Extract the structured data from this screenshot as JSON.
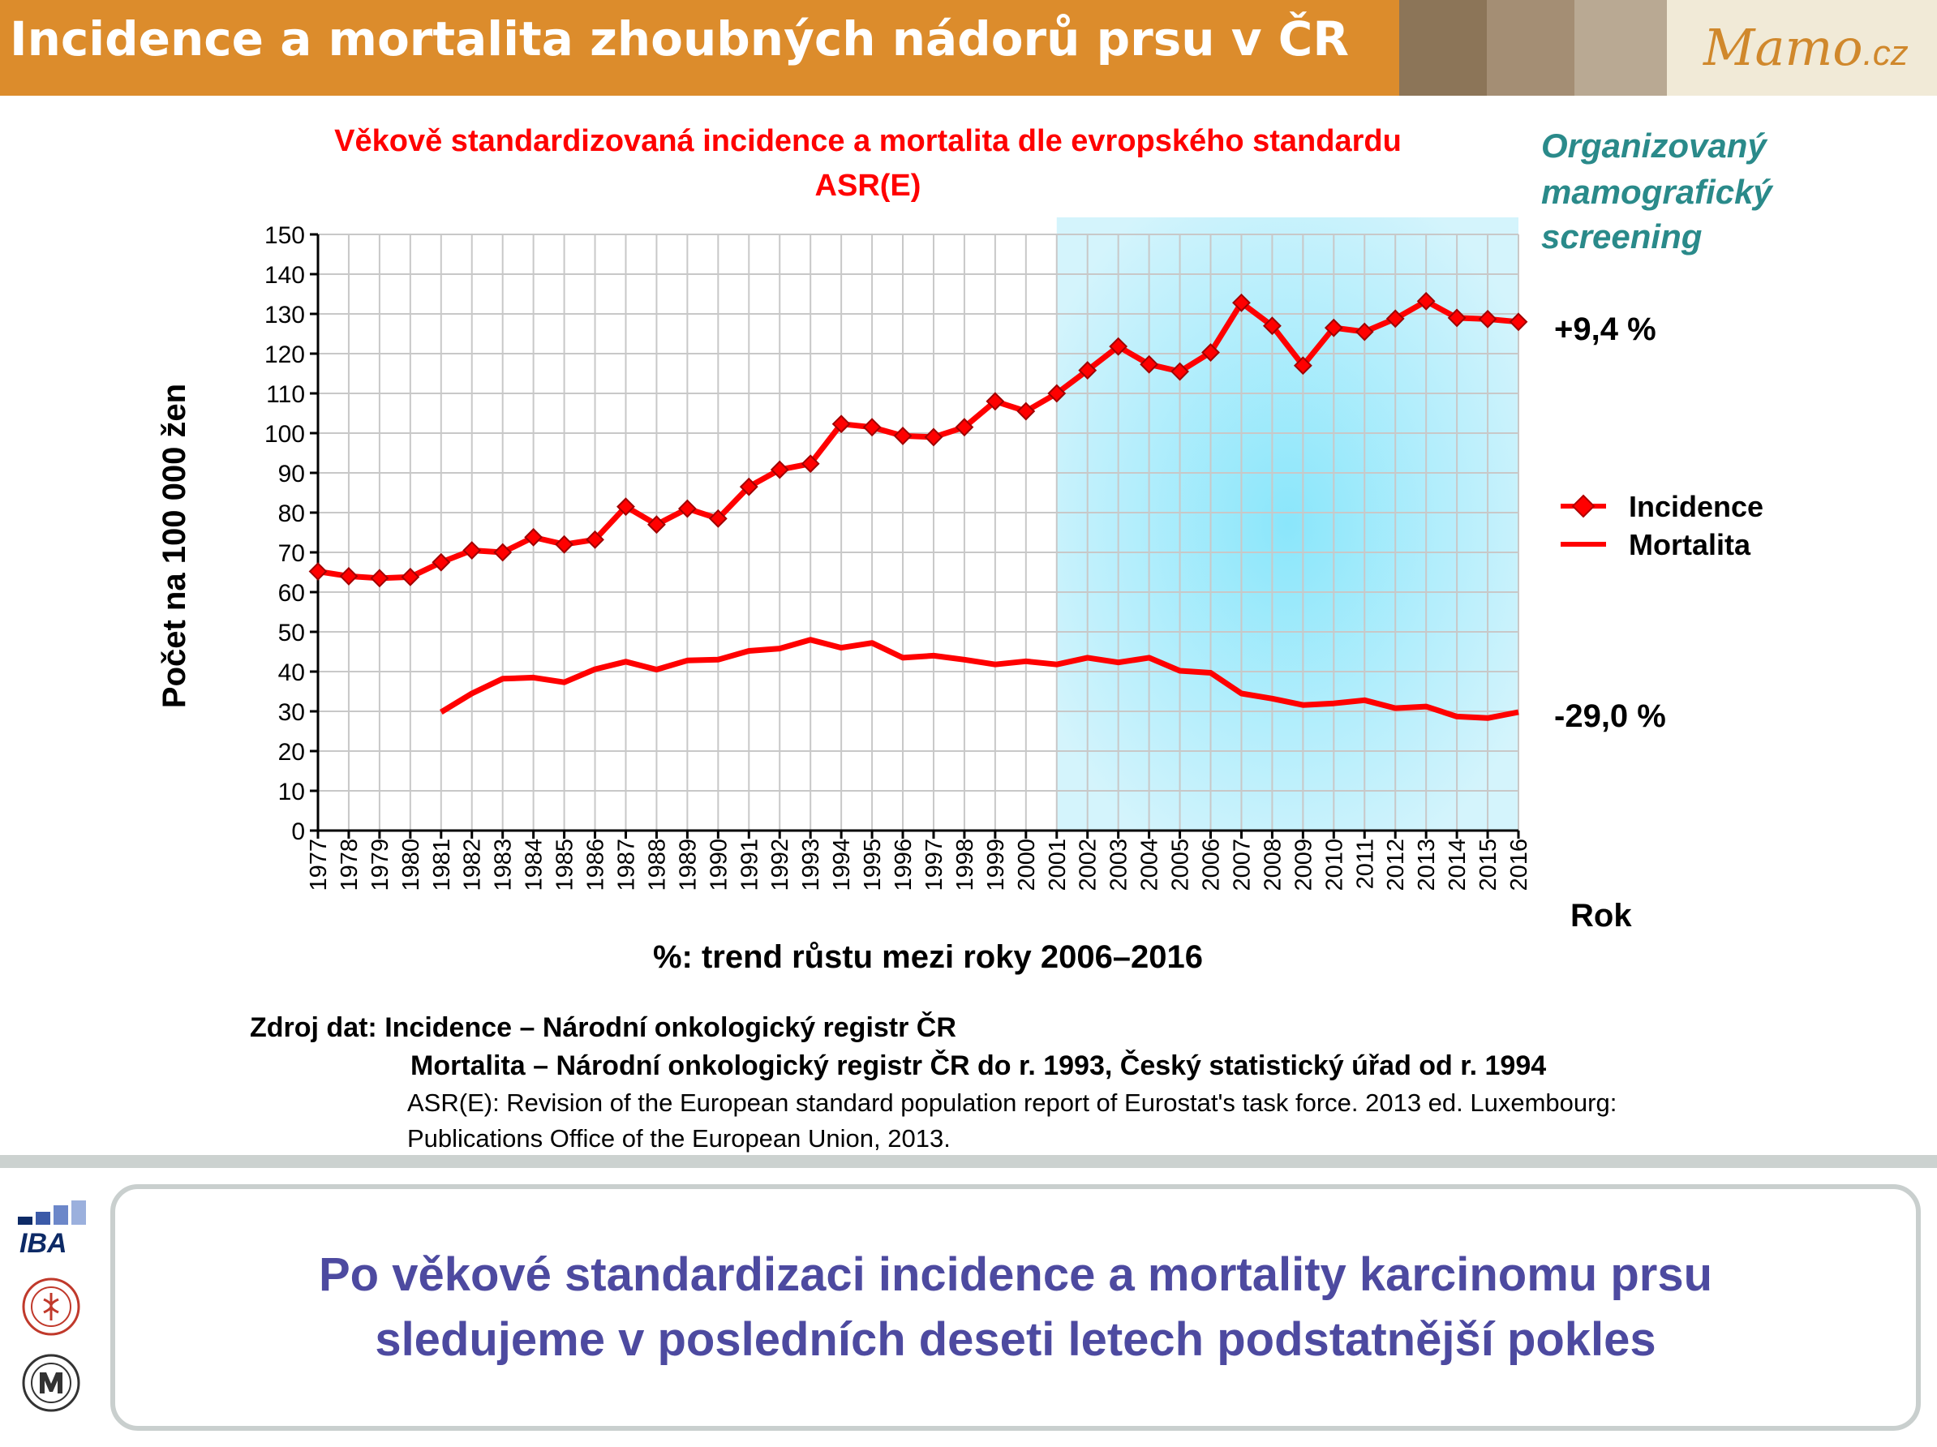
{
  "header": {
    "title": "Incidence a mortalita zhoubných nádorů prsu v ČR",
    "logo_main": "Mamo",
    "logo_suffix": ".cz"
  },
  "colors": {
    "header_orange": "#dc8c2c",
    "series_red": "#ff0000",
    "screening_teal": "#2a8a8a",
    "conclusion_blue": "#4d4aa0",
    "screening_band": "#c9f0fb"
  },
  "chart_data": {
    "type": "line",
    "title": "Věkově standardizovaná incidence a mortalita dle evropského standardu ASR(E)",
    "title_lines": [
      "Věkově standardizovaná incidence a mortalita dle evropského standardu",
      "ASR(E)"
    ],
    "ylabel": "Počet  na 100 000 žen",
    "xlabel": "Rok",
    "ylim": [
      0,
      150
    ],
    "yticks": [
      0,
      10,
      20,
      30,
      40,
      50,
      60,
      70,
      80,
      90,
      100,
      110,
      120,
      130,
      140,
      150
    ],
    "x": [
      1977,
      1978,
      1979,
      1980,
      1981,
      1982,
      1983,
      1984,
      1985,
      1986,
      1987,
      1988,
      1989,
      1990,
      1991,
      1992,
      1993,
      1994,
      1995,
      1996,
      1997,
      1998,
      1999,
      2000,
      2001,
      2002,
      2003,
      2004,
      2005,
      2006,
      2007,
      2008,
      2009,
      2010,
      2011,
      2012,
      2013,
      2014,
      2015,
      2016
    ],
    "grid": true,
    "legend_position": "right",
    "series": [
      {
        "name": "Incidence",
        "marker": "diamond",
        "values": [
          65.2,
          64.0,
          63.5,
          63.8,
          67.5,
          70.5,
          70.0,
          73.8,
          72.0,
          73.2,
          81.5,
          77.0,
          81.0,
          78.5,
          86.5,
          90.8,
          92.3,
          102.3,
          101.5,
          99.3,
          99.0,
          101.5,
          108.0,
          105.5,
          110.0,
          115.8,
          121.8,
          117.3,
          115.5,
          120.3,
          132.8,
          127.0,
          117.0,
          126.5,
          125.5,
          128.8,
          133.2,
          129.0,
          128.7,
          128.0
        ]
      },
      {
        "name": "Mortalita",
        "marker": "none",
        "values": [
          null,
          null,
          null,
          null,
          29.8,
          34.5,
          38.2,
          38.5,
          37.3,
          40.6,
          42.5,
          40.5,
          42.8,
          43.0,
          45.2,
          45.8,
          48.0,
          46.0,
          47.2,
          43.5,
          44.0,
          43.0,
          41.8,
          42.6,
          41.8,
          43.5,
          42.3,
          43.5,
          40.2,
          39.7,
          34.5,
          33.2,
          31.6,
          32.0,
          32.8,
          30.8,
          31.2,
          28.7,
          28.3,
          29.8
        ]
      }
    ],
    "screening_band": {
      "from": 2001,
      "to": 2016
    },
    "annotations": {
      "screening_label": [
        "Organizovaný",
        "mamografický",
        "screening"
      ],
      "incidence_trend": "+9,4 %",
      "mortality_trend": "-29,0 %",
      "trend_note": "%: trend růstu mezi roky 2006–2016"
    }
  },
  "source": {
    "line1": "Zdroj dat: Incidence – Národní onkologický registr ČR",
    "line2": "Mortalita – Národní onkologický registr ČR do r. 1993, Český statistický úřad od r. 1994",
    "line3": "ASR(E): Revision of the European standard population report of Eurostat's task force. 2013 ed. Luxembourg:",
    "line4": "Publications Office of the European Union, 2013."
  },
  "conclusion": {
    "line1": "Po věkové standardizaci incidence a mortality karcinomu prsu",
    "line2": "sledujeme v posledních deseti letech podstatnější pokles"
  },
  "logos": {
    "iba": "IBA"
  }
}
